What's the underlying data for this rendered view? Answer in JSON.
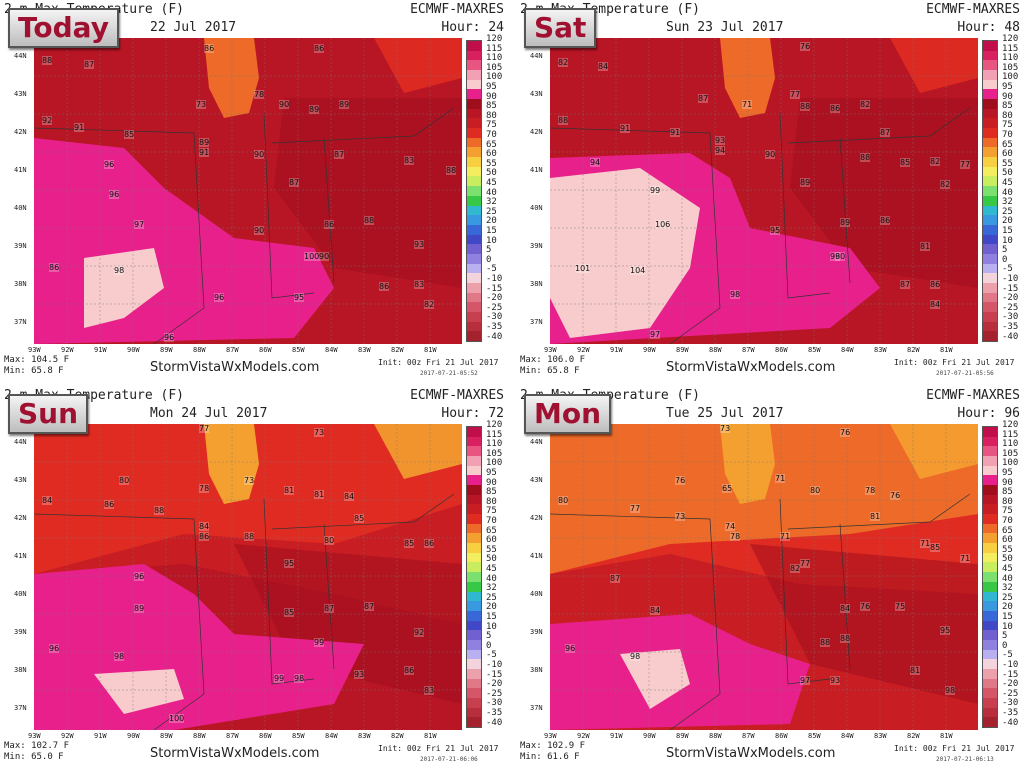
{
  "colorbar": {
    "labels": [
      "120",
      "115",
      "110",
      "105",
      "100",
      "95",
      "90",
      "85",
      "80",
      "75",
      "70",
      "65",
      "60",
      "55",
      "50",
      "45",
      "40",
      "32",
      "25",
      "20",
      "15",
      "10",
      "5",
      "0",
      "-5",
      "-10",
      "-15",
      "-20",
      "-25",
      "-30",
      "-35",
      "-40"
    ],
    "colors": [
      "#c00e4a",
      "#d81f60",
      "#e85580",
      "#f2a1b5",
      "#f8cccc",
      "#e8208c",
      "#a00e1e",
      "#b81624",
      "#c81d22",
      "#e02b22",
      "#ee6a28",
      "#f4a030",
      "#f8cf40",
      "#f2ee60",
      "#c8ee60",
      "#7ce070",
      "#38c848",
      "#30b8d0",
      "#3898e0",
      "#3868d8",
      "#4048c8",
      "#7060d0",
      "#9080e0",
      "#b8b0f0",
      "#f4d4dc",
      "#eca0ac",
      "#e07888",
      "#d45668",
      "#c84050",
      "#b82e3c",
      "#a4222e"
    ]
  },
  "lat_labels": [
    "44N",
    "43N",
    "42N",
    "41N",
    "40N",
    "39N",
    "38N",
    "37N"
  ],
  "lon_labels": [
    "93W",
    "92W",
    "91W",
    "90W",
    "89W",
    "88W",
    "87W",
    "86W",
    "85W",
    "84W",
    "83W",
    "82W",
    "81W"
  ],
  "site": "StormVistaWxModels.com",
  "panels": [
    {
      "badge": "Today",
      "title": "2 m Max Temperature (F)",
      "model": "ECMWF-MAXRES",
      "date": "22 Jul 2017",
      "hour": "Hour: 24",
      "max": "Max: 104.5 F",
      "min": "Min: 65.8 F",
      "init": "Init: 00z Fri 21 Jul 2017",
      "init_stamp": "2017-07-21-05:52",
      "values": [
        "88",
        "87",
        "86",
        "86",
        "73",
        "78",
        "90",
        "89",
        "89",
        "92",
        "91",
        "85",
        "89",
        "91",
        "90",
        "87",
        "83",
        "88",
        "96",
        "87",
        "96",
        "97",
        "86",
        "88",
        "90",
        "86",
        "98",
        "100",
        "90",
        "93",
        "86",
        "83",
        "96",
        "95",
        "82",
        "96"
      ]
    },
    {
      "badge": "Sat",
      "title": "2 m Max Temperature (F)",
      "model": "ECMWF-MAXRES",
      "date": "Sun 23 Jul 2017",
      "hour": "Hour: 48",
      "max": "Max: 106.0 F",
      "min": "Min: 65.8 F",
      "init": "Init: 00z Fri 21 Jul 2017",
      "init_stamp": "2017-07-21-05:56",
      "values": [
        "82",
        "84",
        "76",
        "87",
        "71",
        "77",
        "88",
        "86",
        "82",
        "88",
        "91",
        "91",
        "93",
        "87",
        "94",
        "90",
        "88",
        "85",
        "82",
        "94",
        "99",
        "89",
        "77",
        "82",
        "106",
        "89",
        "86",
        "95",
        "90",
        "81",
        "101",
        "104",
        "98",
        "98",
        "87",
        "86",
        "84",
        "97"
      ]
    },
    {
      "badge": "Sun",
      "title": "2 m Max Temperature (F)",
      "model": "ECMWF-MAXRES",
      "date": "Mon 24 Jul 2017",
      "hour": "Hour: 72",
      "max": "Max: 102.7 F",
      "min": "Min: 65.0 F",
      "init": "Init: 00z Fri 21 Jul 2017",
      "init_stamp": "2017-07-21-06:06",
      "values": [
        "77",
        "73",
        "80",
        "78",
        "73",
        "81",
        "81",
        "84",
        "84",
        "86",
        "88",
        "85",
        "84",
        "80",
        "86",
        "88",
        "85",
        "86",
        "95",
        "96",
        "89",
        "85",
        "87",
        "87",
        "92",
        "99",
        "96",
        "98",
        "99",
        "98",
        "93",
        "86",
        "100",
        "83"
      ]
    },
    {
      "badge": "Mon",
      "title": "2 m Max Temperature (F)",
      "model": "ECMWF-MAXRES",
      "date": "Tue 25 Jul 2017",
      "hour": "Hour: 96",
      "max": "Max: 102.9 F",
      "min": "Min: 61.6 F",
      "init": "Init: 00z Fri 21 Jul 2017",
      "init_stamp": "2017-07-21-06:13",
      "values": [
        "73",
        "76",
        "76",
        "65",
        "71",
        "80",
        "78",
        "76",
        "80",
        "77",
        "73",
        "74",
        "81",
        "78",
        "71",
        "71",
        "85",
        "77",
        "71",
        "87",
        "82",
        "76",
        "75",
        "84",
        "84",
        "96",
        "98",
        "88",
        "88",
        "95",
        "97",
        "93",
        "81",
        "98"
      ]
    }
  ]
}
